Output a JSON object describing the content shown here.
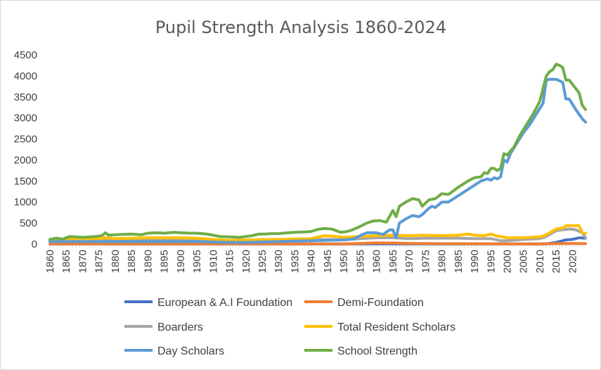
{
  "chart_data": {
    "type": "line",
    "title": "Pupil Strength Analysis 1860-2024",
    "xlabel": "",
    "ylabel": "",
    "xlim": [
      1860,
      2024
    ],
    "ylim": [
      0,
      4500
    ],
    "y_ticks": [
      0,
      500,
      1000,
      1500,
      2000,
      2500,
      3000,
      3500,
      4000,
      4500
    ],
    "x_ticks": [
      1860,
      1865,
      1870,
      1875,
      1880,
      1885,
      1890,
      1895,
      1900,
      1905,
      1910,
      1915,
      1920,
      1925,
      1930,
      1935,
      1940,
      1945,
      1950,
      1955,
      1960,
      1965,
      1970,
      1975,
      1980,
      1985,
      1990,
      1995,
      2000,
      2005,
      2010,
      2015,
      2020
    ],
    "grid": false,
    "legend_position": "bottom",
    "series": [
      {
        "name": "European & A.I Foundation",
        "color": "#4472C4",
        "points": [
          [
            1860,
            5
          ],
          [
            1900,
            5
          ],
          [
            1950,
            5
          ],
          [
            2000,
            5
          ],
          [
            2012,
            5
          ],
          [
            2015,
            40
          ],
          [
            2018,
            100
          ],
          [
            2020,
            110
          ],
          [
            2022,
            150
          ],
          [
            2024,
            140
          ]
        ]
      },
      {
        "name": "Demi-Foundation",
        "color": "#ED7D31",
        "points": [
          [
            1860,
            5
          ],
          [
            1950,
            5
          ],
          [
            1955,
            15
          ],
          [
            1960,
            30
          ],
          [
            1965,
            25
          ],
          [
            1970,
            15
          ],
          [
            1980,
            10
          ],
          [
            2000,
            5
          ],
          [
            2010,
            5
          ],
          [
            2015,
            10
          ],
          [
            2020,
            15
          ],
          [
            2024,
            10
          ]
        ]
      },
      {
        "name": "Boarders",
        "color": "#A5A5A5",
        "points": [
          [
            1860,
            90
          ],
          [
            1863,
            60
          ],
          [
            1866,
            100
          ],
          [
            1870,
            90
          ],
          [
            1875,
            100
          ],
          [
            1877,
            130
          ],
          [
            1880,
            100
          ],
          [
            1885,
            110
          ],
          [
            1890,
            120
          ],
          [
            1895,
            120
          ],
          [
            1900,
            120
          ],
          [
            1905,
            115
          ],
          [
            1910,
            80
          ],
          [
            1915,
            60
          ],
          [
            1920,
            70
          ],
          [
            1925,
            80
          ],
          [
            1930,
            80
          ],
          [
            1935,
            90
          ],
          [
            1940,
            100
          ],
          [
            1945,
            110
          ],
          [
            1950,
            100
          ],
          [
            1955,
            130
          ],
          [
            1960,
            150
          ],
          [
            1965,
            150
          ],
          [
            1970,
            130
          ],
          [
            1975,
            140
          ],
          [
            1980,
            140
          ],
          [
            1985,
            140
          ],
          [
            1990,
            130
          ],
          [
            1995,
            130
          ],
          [
            1998,
            80
          ],
          [
            2000,
            80
          ],
          [
            2005,
            110
          ],
          [
            2010,
            130
          ],
          [
            2012,
            180
          ],
          [
            2015,
            320
          ],
          [
            2017,
            340
          ],
          [
            2019,
            360
          ],
          [
            2021,
            340
          ],
          [
            2023,
            270
          ],
          [
            2024,
            150
          ]
        ]
      },
      {
        "name": "Total Resident Scholars",
        "color": "#FFC000",
        "points": [
          [
            1860,
            100
          ],
          [
            1863,
            80
          ],
          [
            1866,
            120
          ],
          [
            1870,
            110
          ],
          [
            1875,
            120
          ],
          [
            1877,
            150
          ],
          [
            1880,
            130
          ],
          [
            1885,
            140
          ],
          [
            1890,
            150
          ],
          [
            1895,
            150
          ],
          [
            1900,
            150
          ],
          [
            1905,
            140
          ],
          [
            1910,
            110
          ],
          [
            1915,
            90
          ],
          [
            1920,
            100
          ],
          [
            1925,
            110
          ],
          [
            1930,
            110
          ],
          [
            1935,
            120
          ],
          [
            1940,
            130
          ],
          [
            1944,
            200
          ],
          [
            1946,
            190
          ],
          [
            1950,
            160
          ],
          [
            1955,
            180
          ],
          [
            1960,
            200
          ],
          [
            1965,
            210
          ],
          [
            1970,
            200
          ],
          [
            1975,
            210
          ],
          [
            1980,
            200
          ],
          [
            1985,
            210
          ],
          [
            1988,
            240
          ],
          [
            1990,
            210
          ],
          [
            1993,
            200
          ],
          [
            1995,
            240
          ],
          [
            1997,
            190
          ],
          [
            2000,
            150
          ],
          [
            2005,
            150
          ],
          [
            2010,
            170
          ],
          [
            2012,
            220
          ],
          [
            2015,
            360
          ],
          [
            2017,
            380
          ],
          [
            2018,
            440
          ],
          [
            2022,
            440
          ],
          [
            2023,
            270
          ],
          [
            2024,
            260
          ]
        ]
      },
      {
        "name": "Day Scholars",
        "color": "#5B9BD5",
        "points": [
          [
            1860,
            60
          ],
          [
            1865,
            60
          ],
          [
            1870,
            60
          ],
          [
            1875,
            60
          ],
          [
            1880,
            60
          ],
          [
            1885,
            60
          ],
          [
            1890,
            60
          ],
          [
            1895,
            60
          ],
          [
            1900,
            60
          ],
          [
            1905,
            60
          ],
          [
            1910,
            50
          ],
          [
            1915,
            40
          ],
          [
            1920,
            40
          ],
          [
            1925,
            50
          ],
          [
            1930,
            60
          ],
          [
            1935,
            70
          ],
          [
            1940,
            80
          ],
          [
            1945,
            90
          ],
          [
            1950,
            100
          ],
          [
            1953,
            120
          ],
          [
            1955,
            200
          ],
          [
            1957,
            270
          ],
          [
            1960,
            270
          ],
          [
            1962,
            230
          ],
          [
            1964,
            340
          ],
          [
            1965,
            340
          ],
          [
            1966,
            150
          ],
          [
            1967,
            500
          ],
          [
            1969,
            600
          ],
          [
            1971,
            680
          ],
          [
            1973,
            650
          ],
          [
            1974,
            700
          ],
          [
            1976,
            850
          ],
          [
            1977,
            900
          ],
          [
            1978,
            870
          ],
          [
            1980,
            1000
          ],
          [
            1982,
            1000
          ],
          [
            1985,
            1150
          ],
          [
            1988,
            1300
          ],
          [
            1990,
            1400
          ],
          [
            1992,
            1500
          ],
          [
            1994,
            1550
          ],
          [
            1995,
            1520
          ],
          [
            1996,
            1580
          ],
          [
            1997,
            1550
          ],
          [
            1998,
            1600
          ],
          [
            1999,
            2000
          ],
          [
            2000,
            1950
          ],
          [
            2001,
            2150
          ],
          [
            2003,
            2400
          ],
          [
            2005,
            2650
          ],
          [
            2007,
            2850
          ],
          [
            2009,
            3100
          ],
          [
            2011,
            3350
          ],
          [
            2012,
            3900
          ],
          [
            2013,
            3920
          ],
          [
            2015,
            3920
          ],
          [
            2017,
            3850
          ],
          [
            2018,
            3450
          ],
          [
            2019,
            3450
          ],
          [
            2021,
            3200
          ],
          [
            2023,
            2980
          ],
          [
            2024,
            2900
          ]
        ]
      },
      {
        "name": "School Strength",
        "color": "#70AD47",
        "points": [
          [
            1860,
            110
          ],
          [
            1862,
            140
          ],
          [
            1864,
            120
          ],
          [
            1866,
            180
          ],
          [
            1868,
            170
          ],
          [
            1870,
            160
          ],
          [
            1872,
            170
          ],
          [
            1874,
            180
          ],
          [
            1876,
            200
          ],
          [
            1877,
            270
          ],
          [
            1878,
            210
          ],
          [
            1880,
            220
          ],
          [
            1882,
            230
          ],
          [
            1885,
            240
          ],
          [
            1888,
            220
          ],
          [
            1890,
            260
          ],
          [
            1893,
            270
          ],
          [
            1895,
            260
          ],
          [
            1898,
            280
          ],
          [
            1900,
            270
          ],
          [
            1903,
            260
          ],
          [
            1905,
            260
          ],
          [
            1908,
            240
          ],
          [
            1910,
            210
          ],
          [
            1912,
            180
          ],
          [
            1915,
            170
          ],
          [
            1918,
            160
          ],
          [
            1920,
            180
          ],
          [
            1922,
            200
          ],
          [
            1924,
            240
          ],
          [
            1926,
            240
          ],
          [
            1928,
            250
          ],
          [
            1930,
            250
          ],
          [
            1933,
            270
          ],
          [
            1935,
            280
          ],
          [
            1938,
            290
          ],
          [
            1940,
            300
          ],
          [
            1942,
            350
          ],
          [
            1944,
            370
          ],
          [
            1946,
            360
          ],
          [
            1947,
            340
          ],
          [
            1949,
            280
          ],
          [
            1951,
            300
          ],
          [
            1953,
            350
          ],
          [
            1955,
            420
          ],
          [
            1957,
            500
          ],
          [
            1959,
            550
          ],
          [
            1961,
            560
          ],
          [
            1963,
            520
          ],
          [
            1965,
            800
          ],
          [
            1966,
            650
          ],
          [
            1967,
            900
          ],
          [
            1969,
            1000
          ],
          [
            1971,
            1080
          ],
          [
            1973,
            1050
          ],
          [
            1974,
            900
          ],
          [
            1976,
            1050
          ],
          [
            1978,
            1080
          ],
          [
            1980,
            1200
          ],
          [
            1982,
            1180
          ],
          [
            1985,
            1350
          ],
          [
            1988,
            1500
          ],
          [
            1990,
            1580
          ],
          [
            1992,
            1600
          ],
          [
            1993,
            1700
          ],
          [
            1994,
            1680
          ],
          [
            1995,
            1800
          ],
          [
            1996,
            1800
          ],
          [
            1997,
            1750
          ],
          [
            1998,
            1800
          ],
          [
            1999,
            2150
          ],
          [
            2000,
            2120
          ],
          [
            2002,
            2300
          ],
          [
            2004,
            2600
          ],
          [
            2006,
            2850
          ],
          [
            2008,
            3100
          ],
          [
            2010,
            3400
          ],
          [
            2011,
            3700
          ],
          [
            2012,
            4000
          ],
          [
            2013,
            4100
          ],
          [
            2014,
            4150
          ],
          [
            2015,
            4280
          ],
          [
            2016,
            4250
          ],
          [
            2017,
            4200
          ],
          [
            2018,
            3900
          ],
          [
            2019,
            3900
          ],
          [
            2020,
            3800
          ],
          [
            2022,
            3600
          ],
          [
            2023,
            3300
          ],
          [
            2024,
            3200
          ]
        ]
      }
    ]
  }
}
